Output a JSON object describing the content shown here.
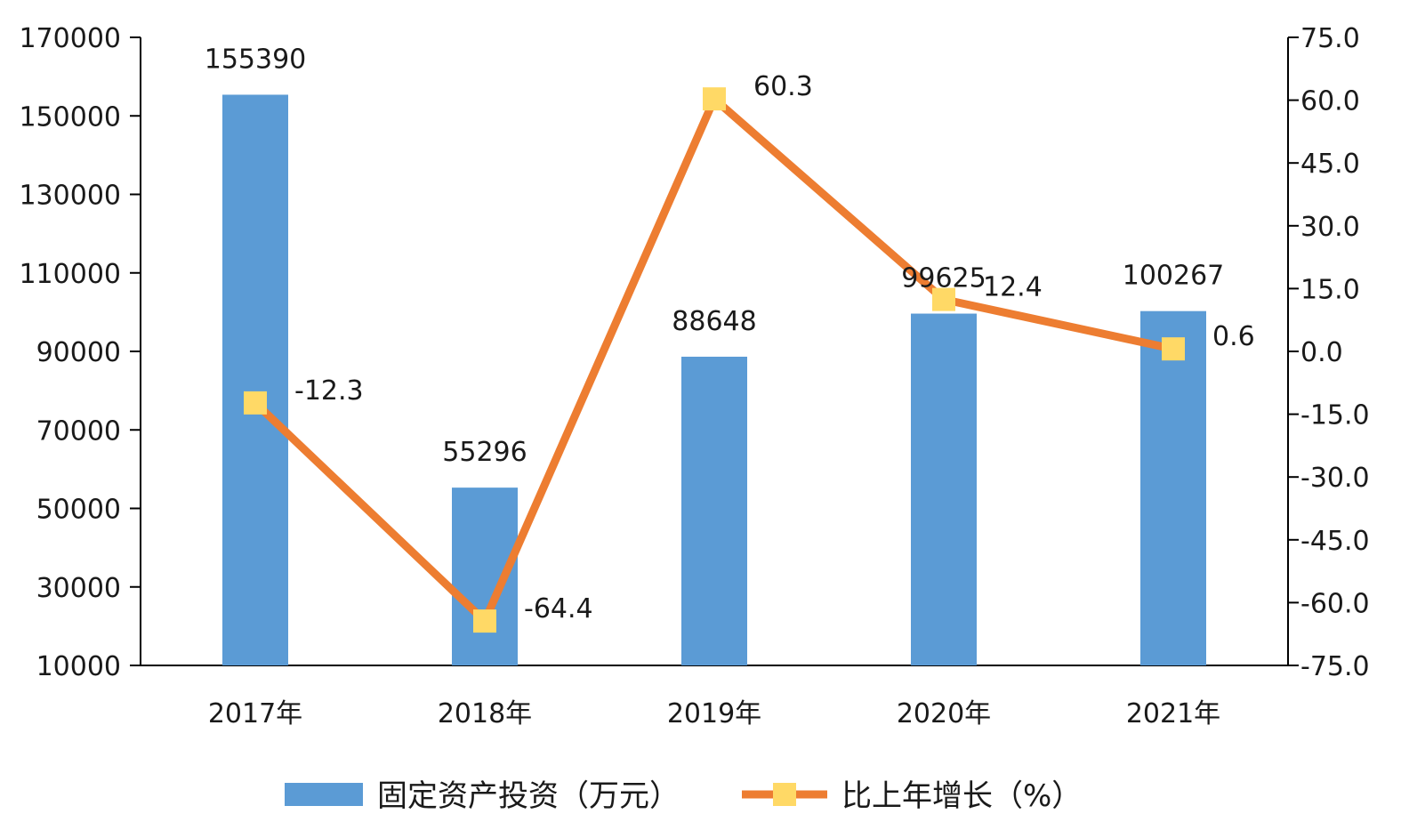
{
  "chart_data": {
    "type": "bar",
    "categories": [
      "2017年",
      "2018年",
      "2019年",
      "2020年",
      "2021年"
    ],
    "series": [
      {
        "name": "固定资产投资（万元）",
        "type": "bar",
        "axis": "left",
        "values": [
          155390,
          55296,
          88648,
          99625,
          100267
        ],
        "labels": [
          "155390",
          "55296",
          "88648",
          "99625",
          "100267"
        ],
        "color": "#5b9bd5"
      },
      {
        "name": "比上年增长（%）",
        "type": "line",
        "axis": "right",
        "values": [
          -12.3,
          -64.4,
          60.3,
          12.4,
          0.6
        ],
        "labels": [
          "-12.3",
          "-64.4",
          "60.3",
          "12.4",
          "0.6"
        ],
        "color": "#ed7d31",
        "marker_color": "#ffd966"
      }
    ],
    "y_left": {
      "ylim": [
        10000,
        170000
      ],
      "ticks": [
        "170000",
        "150000",
        "130000",
        "110000",
        "90000",
        "70000",
        "50000",
        "30000",
        "10000"
      ]
    },
    "y_right": {
      "ylim": [
        -75,
        75
      ],
      "ticks": [
        "75.0",
        "60.0",
        "45.0",
        "30.0",
        "15.0",
        "0.0",
        "-15.0",
        "-30.0",
        "-45.0",
        "-60.0",
        "-75.0"
      ]
    },
    "grid": false,
    "legend_position": "bottom"
  }
}
